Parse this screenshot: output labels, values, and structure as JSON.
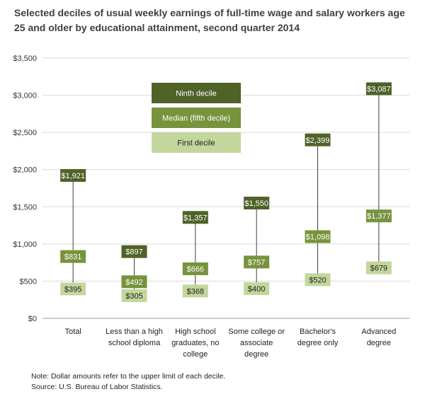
{
  "chart_data": {
    "type": "range",
    "title": "Selected deciles of usual weekly earnings of full-time wage and salary workers age 25 and older by educational attainment, second quarter 2014",
    "categories": [
      [
        "Total"
      ],
      [
        "Less than a high",
        "school diploma"
      ],
      [
        "High school",
        "graduates, no",
        "college"
      ],
      [
        "Some college or",
        "associate",
        "degree"
      ],
      [
        "Bachelor's",
        "degree only"
      ],
      [
        "Advanced",
        "degree"
      ]
    ],
    "series": [
      {
        "name": "Ninth decile",
        "color": "#4f6228",
        "values": [
          1921,
          897,
          1357,
          1550,
          2399,
          3087
        ]
      },
      {
        "name": "Median (fifth decile)",
        "color": "#77933c",
        "values": [
          831,
          492,
          666,
          757,
          1098,
          1377
        ]
      },
      {
        "name": "First decile",
        "color": "#c3d69b",
        "values": [
          395,
          305,
          368,
          400,
          520,
          679
        ]
      }
    ],
    "ylim": [
      0,
      3500
    ],
    "yticks": [
      0,
      500,
      1000,
      1500,
      2000,
      2500,
      3000,
      3500
    ],
    "ytick_labels": [
      "$0",
      "$500",
      "$1,000",
      "$1,500",
      "$2,000",
      "$2,500",
      "$3,000",
      "$3,500"
    ],
    "value_labels": [
      [
        "$1,921",
        "$897",
        "$1,357",
        "$1,550",
        "$2,399",
        "$3,087"
      ],
      [
        "$831",
        "$492",
        "$666",
        "$757",
        "$1,098",
        "$1,377"
      ],
      [
        "$395",
        "$305",
        "$368",
        "$400",
        "$520",
        "$679"
      ]
    ],
    "legend_position": "top-center"
  },
  "note": "Note: Dollar amounts refer to the upper limit of each decile.",
  "source": "Source: U.S. Bureau of Labor Statistics."
}
